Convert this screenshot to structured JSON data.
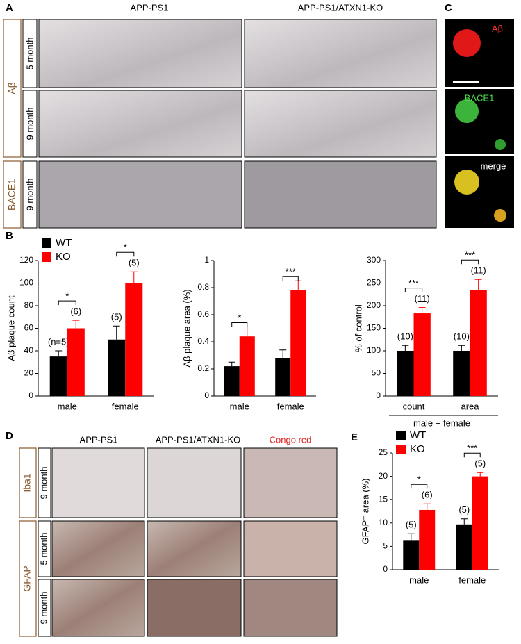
{
  "panels": {
    "A": {
      "letter": "A",
      "columns": [
        "APP-PS1",
        "APP-PS1/ATXN1-KO"
      ],
      "groups": [
        "Aβ",
        "BACE1"
      ],
      "rows": [
        "5 month",
        "9 month",
        "9 month"
      ]
    },
    "B": {
      "letter": "B"
    },
    "C": {
      "letter": "C",
      "channels": [
        "Aβ",
        "BACE1",
        "merge"
      ]
    },
    "D": {
      "letter": "D",
      "columns": [
        "APP-PS1",
        "APP-PS1/ATXN1-KO",
        "Congo red"
      ],
      "groups": [
        "Iba1",
        "GFAP"
      ],
      "rows": [
        "9 month",
        "5 month",
        "9 month"
      ]
    },
    "E": {
      "letter": "E"
    }
  },
  "chart_data": [
    {
      "type": "bar",
      "ylabel": "Aβ plaque count",
      "categories": [
        "male",
        "female"
      ],
      "ylim": [
        0,
        120
      ],
      "yticks": [
        0,
        20,
        40,
        60,
        80,
        100,
        120
      ],
      "legend": "top-left",
      "series": [
        {
          "name": "WT",
          "color": "#000000",
          "values": [
            35,
            50
          ],
          "errors": [
            5,
            12
          ],
          "labels": [
            "(n=5)",
            "(5)"
          ]
        },
        {
          "name": "KO",
          "color": "#ff0000",
          "values": [
            60,
            100
          ],
          "errors": [
            7,
            10
          ],
          "labels": [
            "(6)",
            "(5)"
          ]
        }
      ],
      "significance": [
        "*",
        "*"
      ]
    },
    {
      "type": "bar",
      "ylabel": "Aβ plaque area (%)",
      "categories": [
        "male",
        "female"
      ],
      "ylim": [
        0,
        1
      ],
      "yticks": [
        0,
        0.2,
        0.4,
        0.6,
        0.8,
        1
      ],
      "series": [
        {
          "color": "#000000",
          "values": [
            0.22,
            0.28
          ],
          "errors": [
            0.03,
            0.06
          ]
        },
        {
          "color": "#ff0000",
          "values": [
            0.44,
            0.78
          ],
          "errors": [
            0.07,
            0.07
          ]
        }
      ],
      "significance": [
        "*",
        "***"
      ]
    },
    {
      "type": "bar",
      "ylabel": "% of control",
      "xlabel": "male + female",
      "categories": [
        "count",
        "area"
      ],
      "ylim": [
        0,
        300
      ],
      "yticks": [
        0,
        50,
        100,
        150,
        200,
        250,
        300
      ],
      "series": [
        {
          "color": "#000000",
          "values": [
            100,
            100
          ],
          "errors": [
            12,
            12
          ],
          "labels": [
            "(10)",
            "(10)"
          ]
        },
        {
          "color": "#ff0000",
          "values": [
            183,
            235
          ],
          "errors": [
            13,
            23
          ],
          "labels": [
            "(11)",
            "(11)"
          ]
        }
      ],
      "significance": [
        "***",
        "***"
      ]
    },
    {
      "type": "bar",
      "ylabel": "GFAP⁺ area (%)",
      "categories": [
        "male",
        "female"
      ],
      "ylim": [
        0,
        25
      ],
      "yticks": [
        0,
        5,
        10,
        15,
        20,
        25
      ],
      "legend": "top-left",
      "series": [
        {
          "name": "WT",
          "color": "#000000",
          "values": [
            6.2,
            9.7
          ],
          "errors": [
            1.5,
            1.2
          ],
          "labels": [
            "(5)",
            "(5)"
          ]
        },
        {
          "name": "KO",
          "color": "#ff0000",
          "values": [
            12.8,
            20
          ],
          "errors": [
            1.3,
            0.8
          ],
          "labels": [
            "(6)",
            "(5)"
          ]
        }
      ],
      "significance": [
        "*",
        "***"
      ]
    }
  ]
}
